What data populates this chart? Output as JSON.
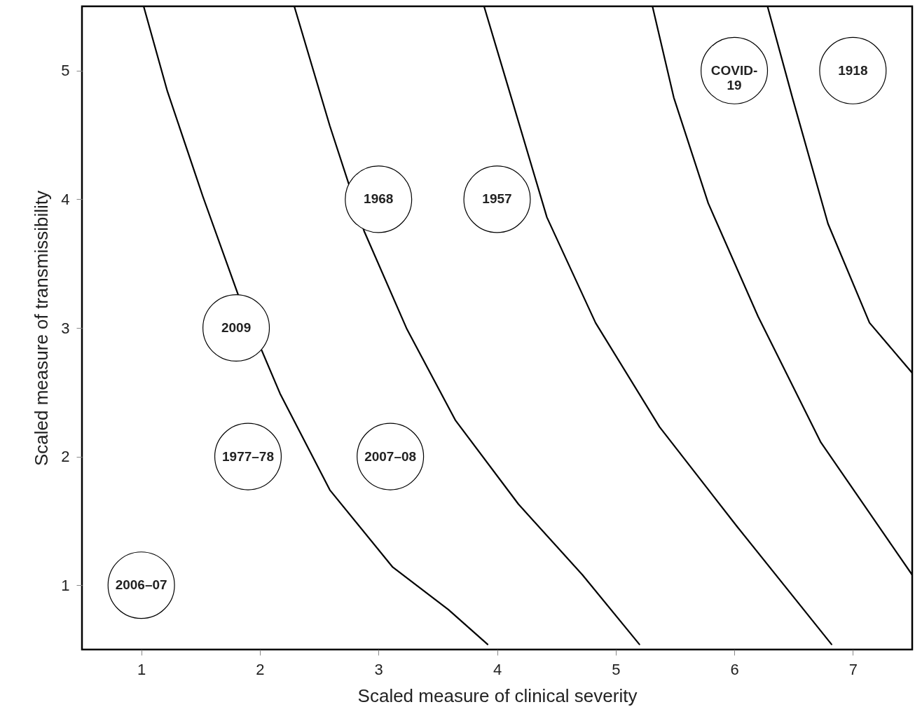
{
  "chart_data": {
    "type": "scatter",
    "xlabel": "Scaled measure of clinical severity",
    "ylabel": "Scaled measure of transmissibility",
    "xlim": [
      0.5,
      7.5
    ],
    "ylim": [
      0.5,
      5.5
    ],
    "xticks": [
      1,
      2,
      3,
      4,
      5,
      6,
      7
    ],
    "yticks": [
      1,
      2,
      3,
      4,
      5
    ],
    "grid": false,
    "series": [
      {
        "color": "#ffffff",
        "x": [
          1,
          1.9,
          1.8,
          3.1,
          3,
          4,
          6,
          7
        ],
        "values": [
          1,
          2,
          3,
          2,
          4,
          4,
          5,
          5
        ]
      },
      {
        "type": "line",
        "color": "#000000",
        "x": [
          1.02,
          1.22,
          1.52,
          1.82,
          2.17,
          2.59,
          3.12,
          3.59,
          3.92
        ],
        "values": [
          5.5,
          4.84,
          4.02,
          3.25,
          2.49,
          1.74,
          1.14,
          0.81,
          0.54
        ]
      },
      {
        "type": "line",
        "color": "#000000",
        "x": [
          2.29,
          2.59,
          2.88,
          3.24,
          3.65,
          4.18,
          4.72,
          5.2
        ],
        "values": [
          5.5,
          4.57,
          3.75,
          2.99,
          2.28,
          1.63,
          1.08,
          0.54
        ]
      },
      {
        "type": "line",
        "color": "#000000",
        "x": [
          3.89,
          4.12,
          4.42,
          4.83,
          5.37,
          6.02,
          6.82
        ],
        "values": [
          5.5,
          4.79,
          3.86,
          3.04,
          2.23,
          1.46,
          0.54
        ]
      },
      {
        "type": "line",
        "color": "#000000",
        "x": [
          5.31,
          5.49,
          5.78,
          6.2,
          6.73,
          7.5
        ],
        "values": [
          5.5,
          4.79,
          3.97,
          3.09,
          2.11,
          1.08
        ]
      },
      {
        "type": "line",
        "color": "#000000",
        "x": [
          6.28,
          6.49,
          6.79,
          7.14,
          7.5
        ],
        "values": [
          5.5,
          4.79,
          3.81,
          3.04,
          2.65
        ]
      }
    ],
    "annotations": [
      {
        "text": "2006–07",
        "x": 1,
        "y": 1
      },
      {
        "text": "1977–78",
        "x": 1.9,
        "y": 2
      },
      {
        "text": "2009",
        "x": 1.8,
        "y": 3
      },
      {
        "text": "2007–08",
        "x": 3.1,
        "y": 2
      },
      {
        "text": "1968",
        "x": 3,
        "y": 4
      },
      {
        "text": "1957",
        "x": 4,
        "y": 4
      },
      {
        "text": "COVID-19",
        "x": 6,
        "y": 5
      },
      {
        "text": "1918",
        "x": 7,
        "y": 5
      }
    ]
  }
}
